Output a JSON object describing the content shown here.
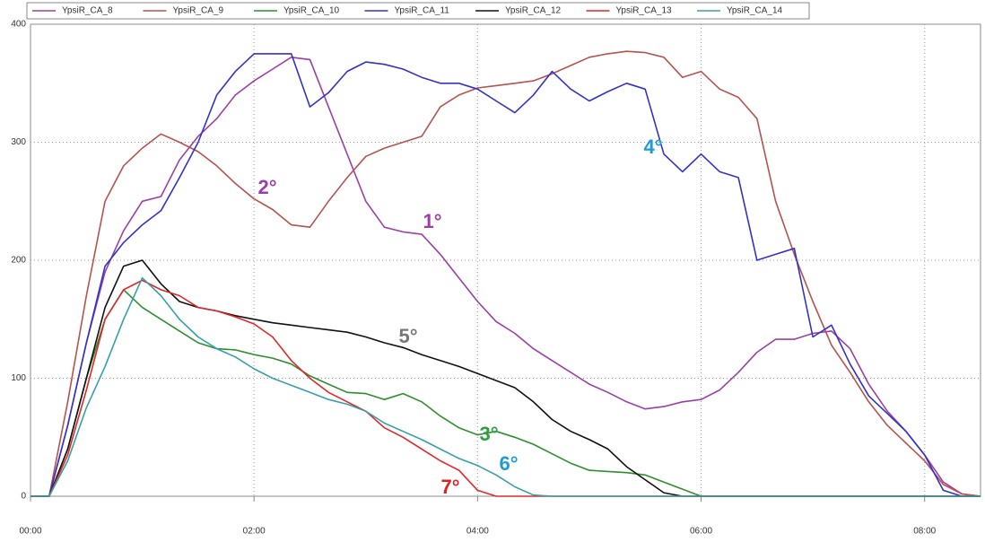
{
  "chart_data": {
    "type": "line",
    "x": [
      0,
      10,
      20,
      30,
      40,
      50,
      60,
      70,
      80,
      90,
      100,
      110,
      120,
      130,
      140,
      150,
      160,
      170,
      180,
      190,
      200,
      210,
      220,
      230,
      240,
      250,
      260,
      270,
      280,
      290,
      300,
      310,
      320,
      330,
      340,
      350,
      360,
      370,
      380,
      390,
      400,
      410,
      420,
      430,
      440,
      450,
      460,
      470,
      480,
      490,
      500,
      510
    ],
    "xlim": [
      0,
      510
    ],
    "xticks": [
      {
        "value": 0,
        "label": "00:00"
      },
      {
        "value": 120,
        "label": "02:00"
      },
      {
        "value": 240,
        "label": "04:00"
      },
      {
        "value": 360,
        "label": "06:00"
      },
      {
        "value": 480,
        "label": "08:00"
      }
    ],
    "ylim": [
      0,
      400
    ],
    "yticks": [
      0,
      100,
      200,
      300,
      400
    ],
    "grid": true,
    "series": [
      {
        "name": "YpsiR_CA_8",
        "color": "#9b3fa6",
        "values": [
          0,
          0,
          60,
          130,
          190,
          225,
          250,
          254,
          285,
          305,
          320,
          340,
          352,
          362,
          372,
          370,
          330,
          290,
          250,
          228,
          224,
          222,
          205,
          185,
          165,
          148,
          138,
          125,
          115,
          105,
          95,
          88,
          80,
          74,
          76,
          80,
          82,
          90,
          105,
          122,
          133,
          133,
          138,
          140,
          125,
          95,
          72,
          55,
          35,
          12,
          2,
          0
        ]
      },
      {
        "name": "YpsiR_CA_9",
        "color": "#b5534c",
        "values": [
          0,
          0,
          80,
          170,
          250,
          280,
          295,
          307,
          300,
          292,
          280,
          265,
          252,
          243,
          230,
          228,
          250,
          270,
          288,
          295,
          300,
          305,
          330,
          340,
          346,
          348,
          350,
          352,
          358,
          365,
          372,
          375,
          377,
          376,
          372,
          355,
          360,
          345,
          338,
          320,
          250,
          205,
          165,
          128,
          105,
          80,
          60,
          45,
          30,
          10,
          2,
          0
        ]
      },
      {
        "name": "YpsiR_CA_10",
        "color": "#2e8f2e",
        "values": [
          0,
          0,
          40,
          100,
          150,
          175,
          160,
          150,
          140,
          130,
          125,
          124,
          120,
          117,
          112,
          102,
          95,
          88,
          87,
          82,
          87,
          80,
          68,
          58,
          52,
          55,
          50,
          44,
          36,
          28,
          22,
          21,
          20,
          18,
          12,
          6,
          0,
          0,
          0,
          0,
          0,
          0,
          0,
          0,
          0,
          0,
          0,
          0,
          0,
          0,
          0,
          0
        ]
      },
      {
        "name": "YpsiR_CA_11",
        "color": "#3232c8",
        "values": [
          0,
          0,
          60,
          130,
          195,
          215,
          230,
          242,
          270,
          300,
          340,
          360,
          375,
          375,
          375,
          330,
          342,
          360,
          368,
          366,
          362,
          355,
          350,
          350,
          345,
          335,
          325,
          340,
          360,
          345,
          335,
          343,
          350,
          345,
          290,
          275,
          290,
          275,
          270,
          200,
          205,
          210,
          135,
          145,
          112,
          85,
          70,
          55,
          35,
          5,
          0,
          0
        ]
      },
      {
        "name": "YpsiR_CA_12",
        "color": "#111111",
        "values": [
          0,
          0,
          40,
          100,
          160,
          195,
          200,
          180,
          165,
          160,
          157,
          153,
          150,
          147,
          145,
          143,
          141,
          139,
          135,
          130,
          126,
          120,
          115,
          110,
          104,
          98,
          92,
          80,
          65,
          55,
          48,
          40,
          25,
          14,
          3,
          0,
          0,
          0,
          0,
          0,
          0,
          0,
          0,
          0,
          0,
          0,
          0,
          0,
          0,
          0,
          0,
          0
        ]
      },
      {
        "name": "YpsiR_CA_13",
        "color": "#e02828",
        "values": [
          0,
          0,
          35,
          90,
          150,
          175,
          183,
          175,
          170,
          160,
          157,
          152,
          146,
          135,
          115,
          100,
          88,
          80,
          72,
          58,
          50,
          40,
          30,
          22,
          5,
          0,
          0,
          0,
          0,
          0,
          0,
          0,
          0,
          0,
          0,
          0,
          0,
          0,
          0,
          0,
          0,
          0,
          0,
          0,
          0,
          0,
          0,
          0,
          0,
          0,
          0,
          0
        ]
      },
      {
        "name": "YpsiR_CA_14",
        "color": "#36a0a8",
        "values": [
          0,
          0,
          30,
          75,
          110,
          150,
          185,
          170,
          150,
          135,
          125,
          118,
          108,
          100,
          94,
          88,
          82,
          78,
          72,
          62,
          55,
          48,
          40,
          32,
          26,
          18,
          8,
          1,
          0,
          0,
          0,
          0,
          0,
          0,
          0,
          0,
          0,
          0,
          0,
          0,
          0,
          0,
          0,
          0,
          0,
          0,
          0,
          0,
          0,
          0,
          0,
          0
        ]
      }
    ],
    "annotations": [
      {
        "text": "2°",
        "color": "#9b3fa6"
      },
      {
        "text": "1°",
        "color": "#9b3fa6"
      },
      {
        "text": "4°",
        "color": "#1e9ad6"
      },
      {
        "text": "5°",
        "color": "#777777"
      },
      {
        "text": "3°",
        "color": "#2ea043"
      },
      {
        "text": "6°",
        "color": "#1e9ad6"
      },
      {
        "text": "7°",
        "color": "#e02020"
      }
    ]
  }
}
